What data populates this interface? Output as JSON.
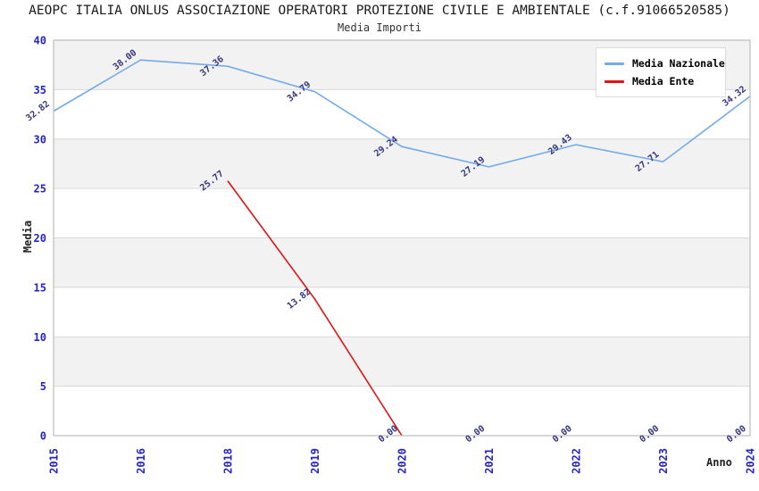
{
  "chart_data": {
    "type": "line",
    "title": "AEOPC ITALIA ONLUS ASSOCIAZIONE OPERATORI PROTEZIONE CIVILE E AMBIENTALE (c.f.91066520585)",
    "subtitle": "Media Importi",
    "xlabel": "Anno",
    "ylabel": "Media",
    "categories": [
      "2015",
      "2016",
      "2018",
      "2019",
      "2020",
      "2021",
      "2022",
      "2023",
      "2024"
    ],
    "ylim": [
      0,
      40
    ],
    "ytick_step": 5,
    "grid": "horizontal gridlines with alternating shaded bands",
    "legend_position": "top-right",
    "point_label_format": "two-decimals",
    "series": [
      {
        "name": "Media Nazionale",
        "color": "#74abe8",
        "values": [
          32.82,
          38.0,
          37.36,
          34.79,
          29.24,
          27.19,
          29.43,
          27.71,
          34.32
        ]
      },
      {
        "name": "Media Ente",
        "color": "#e21212",
        "values": [
          null,
          null,
          25.77,
          13.82,
          0.0,
          0.0,
          0.0,
          0.0,
          0.0
        ],
        "line_visible_through_index": 4
      }
    ],
    "colors": {
      "tick_label": "#2424cc",
      "point_label": "#35357f",
      "band": "#f2f2f2",
      "grid": "#d9d9d9",
      "spine": "#bdbdbd",
      "title": "#1a1a1a",
      "legend_text": "#000000"
    }
  }
}
